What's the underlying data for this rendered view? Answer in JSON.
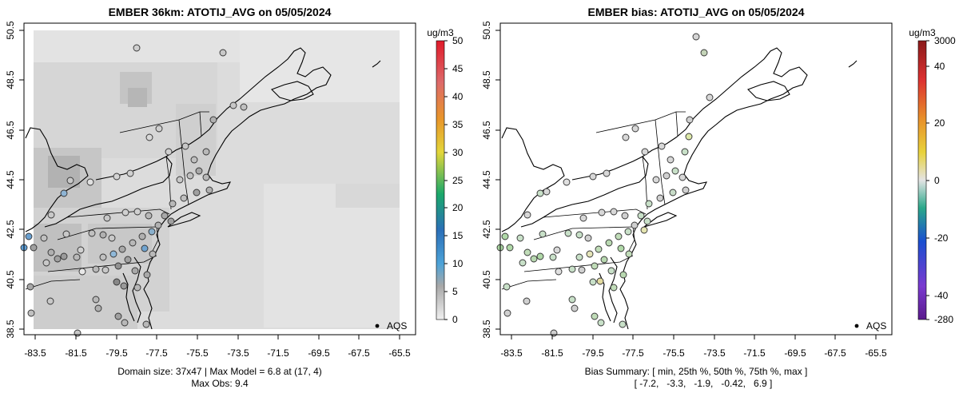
{
  "left_panel": {
    "title": "EMBER 36km: ATOTIJ_AVG on 05/05/2024",
    "colorbar_unit": "ug/m3",
    "colorbar_ticks": [
      "50",
      "45",
      "40",
      "35",
      "30",
      "25",
      "20",
      "15",
      "10",
      "5",
      "0"
    ],
    "x_ticks": [
      "-83.5",
      "-81.5",
      "-79.5",
      "-77.5",
      "-75.5",
      "-73.5",
      "-71.5",
      "-69.5",
      "-67.5",
      "-65.5"
    ],
    "y_ticks": [
      "50.5",
      "48.5",
      "46.5",
      "44.5",
      "42.5",
      "40.5",
      "38.5"
    ],
    "legend_label": "AQS",
    "caption_line1": "Domain size: 37x47 | Max Model = 6.8 at (17, 4)",
    "caption_line2": "Max Obs: 9.4"
  },
  "right_panel": {
    "title": "EMBER bias: ATOTIJ_AVG on 05/05/2024",
    "colorbar_unit": "ug/m3",
    "colorbar_ticks": [
      "3000",
      "40",
      "20",
      "0",
      "-20",
      "-40",
      "-280"
    ],
    "x_ticks": [
      "-83.5",
      "-81.5",
      "-79.5",
      "-77.5",
      "-75.5",
      "-73.5",
      "-71.5",
      "-69.5",
      "-67.5",
      "-65.5"
    ],
    "y_ticks": [
      "50.5",
      "48.5",
      "46.5",
      "44.5",
      "42.5",
      "40.5",
      "38.5"
    ],
    "legend_label": "AQS",
    "caption_line1": "Bias Summary: [ min, 25th %, 50th %, 75th %, max ]",
    "caption_line2": "[ -7.2,   -3.3,   -1.9,   -0.42,   6.9 ]"
  },
  "colors": {
    "frame": "#000000",
    "grid_light": "#e3e3e3",
    "grid_mid": "#cfcfcf",
    "grid_dark": "#b4b4b4"
  }
}
